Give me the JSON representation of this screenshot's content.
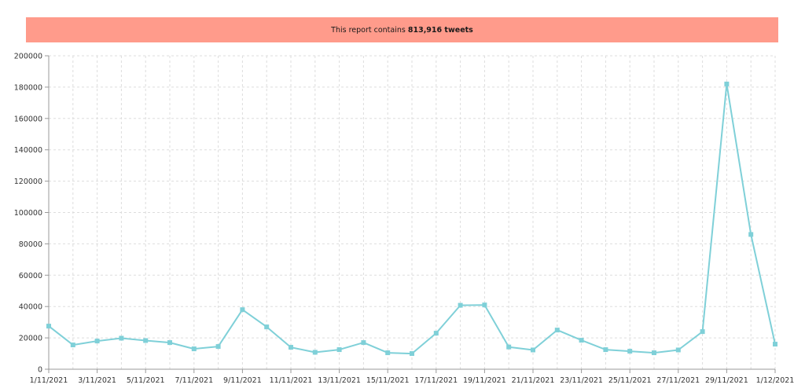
{
  "banner": {
    "prefix": "This report contains ",
    "count": "813,916 tweets"
  },
  "colors": {
    "banner_bg": "#ff9b8b",
    "line": "#7fd0d8",
    "grid": "#dddddd"
  },
  "chart_data": {
    "type": "line",
    "grid": true,
    "ylim": [
      0,
      200000
    ],
    "yticks": [
      0,
      20000,
      40000,
      60000,
      80000,
      100000,
      120000,
      140000,
      160000,
      180000,
      200000
    ],
    "x": [
      "1/11/2021",
      "2/11/2021",
      "3/11/2021",
      "4/11/2021",
      "5/11/2021",
      "6/11/2021",
      "7/11/2021",
      "8/11/2021",
      "9/11/2021",
      "10/11/2021",
      "11/11/2021",
      "12/11/2021",
      "13/11/2021",
      "14/11/2021",
      "15/11/2021",
      "16/11/2021",
      "17/11/2021",
      "18/11/2021",
      "19/11/2021",
      "20/11/2021",
      "21/11/2021",
      "22/11/2021",
      "23/11/2021",
      "24/11/2021",
      "25/11/2021",
      "26/11/2021",
      "27/11/2021",
      "28/11/2021",
      "29/11/2021",
      "30/11/2021",
      "1/12/2021"
    ],
    "xtick_labels": [
      "1/11/2021",
      "3/11/2021",
      "5/11/2021",
      "7/11/2021",
      "9/11/2021",
      "11/11/2021",
      "13/11/2021",
      "15/11/2021",
      "17/11/2021",
      "19/11/2021",
      "21/11/2021",
      "23/11/2021",
      "25/11/2021",
      "27/11/2021",
      "29/11/2021",
      "1/12/2021"
    ],
    "series": [
      {
        "values": [
          27500,
          15500,
          18000,
          19800,
          18300,
          17000,
          13000,
          14500,
          38000,
          27000,
          14000,
          10800,
          12500,
          17000,
          10500,
          10000,
          23000,
          40800,
          41000,
          14200,
          12300,
          25000,
          18500,
          12500,
          11500,
          10500,
          12300,
          24000,
          182000,
          86000,
          16000
        ]
      }
    ]
  }
}
